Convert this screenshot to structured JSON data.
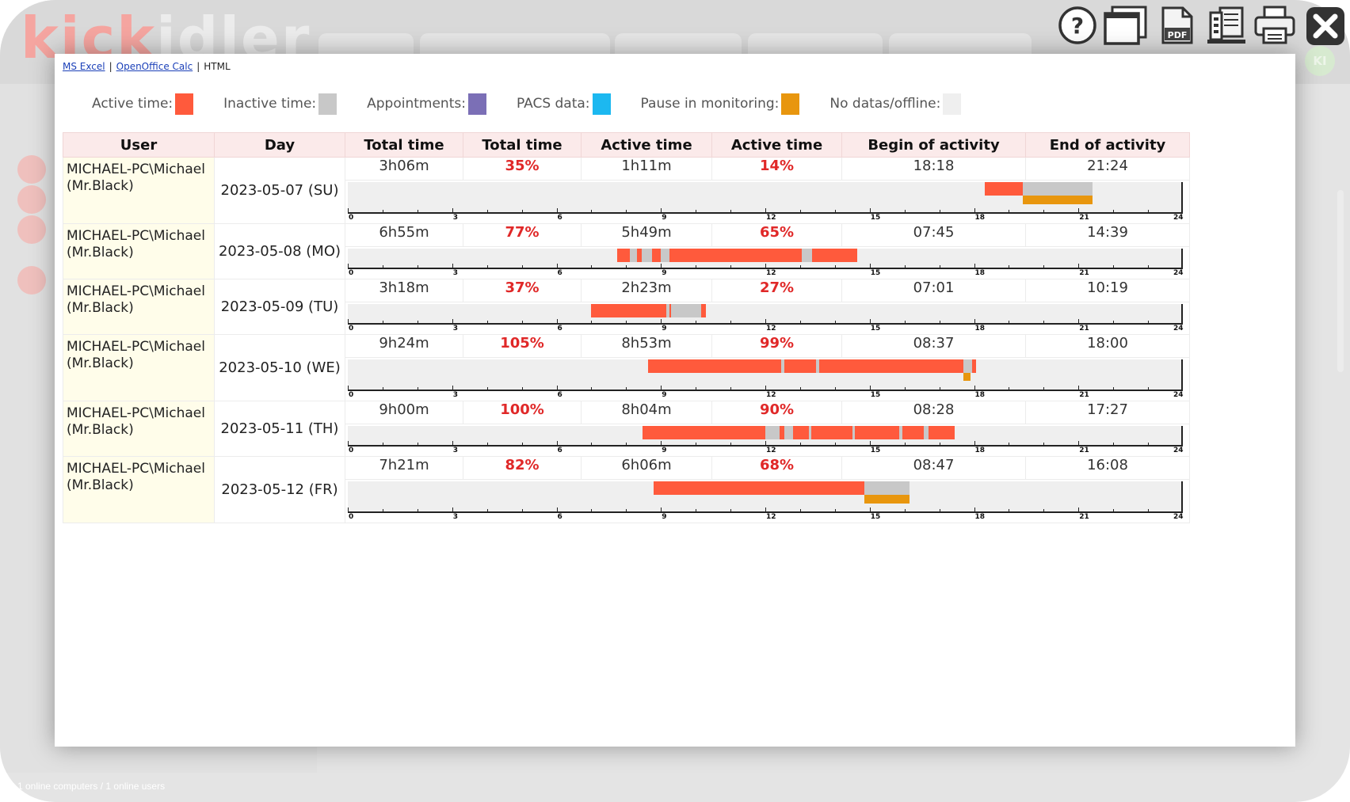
{
  "app": {
    "logo_kick": "kick",
    "logo_idler": "idler",
    "status_text": "1 online computers / 1 online users",
    "avatar_initials": "KI"
  },
  "toolbar": {
    "icons": [
      "help-icon",
      "window-icon",
      "pdf-icon",
      "archive-icon",
      "print-icon",
      "close-icon"
    ],
    "pdf_text": "PDF"
  },
  "export": {
    "excel": "MS Excel",
    "calc": "OpenOffice Calc",
    "html": "HTML",
    "separator": "|"
  },
  "legend": [
    {
      "label": "Active time:",
      "color": "#ff5a3c"
    },
    {
      "label": "Inactive time:",
      "color": "#c8c8c8"
    },
    {
      "label": "Appointments:",
      "color": "#7b6fb6"
    },
    {
      "label": "PACS data:",
      "color": "#1cb8f0"
    },
    {
      "label": "Pause in monitoring:",
      "color": "#e8960e"
    },
    {
      "label": "No datas/offline:",
      "color": "#efefef"
    }
  ],
  "colors": {
    "active": "#ff5a3c",
    "inactive": "#c8c8c8",
    "pause": "#e8960e",
    "offline": "#efefef",
    "percent": "#e02828"
  },
  "table": {
    "headers": [
      "User",
      "Day",
      "Total time",
      "Total time",
      "Active time",
      "Active time",
      "Begin of activity",
      "End of activity"
    ],
    "axis_ticks": [
      "0",
      "3",
      "6",
      "9",
      "12",
      "15",
      "18",
      "21",
      "24"
    ],
    "rows": [
      {
        "user_line1": "MICHAEL-PC\\Michael",
        "user_line2": "(Mr.Black)",
        "day": "2023-05-07 (SU)",
        "total_time": "3h06m",
        "total_pct": "35%",
        "active_time": "1h11m",
        "active_pct": "14%",
        "begin": "18:18",
        "end": "21:24",
        "segments": [
          {
            "type": "active",
            "start": 18.3,
            "end": 19.4
          },
          {
            "type": "inactive",
            "start": 19.4,
            "end": 21.4
          }
        ],
        "pauses": [
          {
            "start": 19.4,
            "end": 21.4
          }
        ]
      },
      {
        "user_line1": "MICHAEL-PC\\Michael",
        "user_line2": "(Mr.Black)",
        "day": "2023-05-08 (MO)",
        "total_time": "6h55m",
        "total_pct": "77%",
        "active_time": "5h49m",
        "active_pct": "65%",
        "begin": "07:45",
        "end": "14:39",
        "segments": [
          {
            "type": "active",
            "start": 7.75,
            "end": 8.1
          },
          {
            "type": "inactive",
            "start": 8.1,
            "end": 8.3
          },
          {
            "type": "active",
            "start": 8.3,
            "end": 8.45
          },
          {
            "type": "inactive",
            "start": 8.45,
            "end": 8.75
          },
          {
            "type": "active",
            "start": 8.75,
            "end": 9.0
          },
          {
            "type": "inactive",
            "start": 9.0,
            "end": 9.25
          },
          {
            "type": "active",
            "start": 9.25,
            "end": 13.05
          },
          {
            "type": "inactive",
            "start": 13.05,
            "end": 13.35
          },
          {
            "type": "active",
            "start": 13.35,
            "end": 14.65
          }
        ],
        "pauses": []
      },
      {
        "user_line1": "MICHAEL-PC\\Michael",
        "user_line2": "(Mr.Black)",
        "day": "2023-05-09 (TU)",
        "total_time": "3h18m",
        "total_pct": "37%",
        "active_time": "2h23m",
        "active_pct": "27%",
        "begin": "07:01",
        "end": "10:19",
        "segments": [
          {
            "type": "active",
            "start": 7.0,
            "end": 9.15
          },
          {
            "type": "inactive",
            "start": 9.15,
            "end": 9.25
          },
          {
            "type": "active",
            "start": 9.25,
            "end": 9.3
          },
          {
            "type": "inactive",
            "start": 9.3,
            "end": 10.15
          },
          {
            "type": "active",
            "start": 10.15,
            "end": 10.3
          }
        ],
        "pauses": []
      },
      {
        "user_line1": "MICHAEL-PC\\Michael",
        "user_line2": "(Mr.Black)",
        "day": "2023-05-10 (WE)",
        "total_time": "9h24m",
        "total_pct": "105%",
        "active_time": "8h53m",
        "active_pct": "99%",
        "begin": "08:37",
        "end": "18:00",
        "segments": [
          {
            "type": "active",
            "start": 8.62,
            "end": 12.45
          },
          {
            "type": "inactive",
            "start": 12.45,
            "end": 12.55
          },
          {
            "type": "active",
            "start": 12.55,
            "end": 13.45
          },
          {
            "type": "inactive",
            "start": 13.45,
            "end": 13.55
          },
          {
            "type": "active",
            "start": 13.55,
            "end": 17.7
          },
          {
            "type": "inactive",
            "start": 17.7,
            "end": 17.95
          },
          {
            "type": "active",
            "start": 17.95,
            "end": 18.05
          }
        ],
        "pauses": [
          {
            "start": 17.7,
            "end": 17.9
          }
        ]
      },
      {
        "user_line1": "MICHAEL-PC\\Michael",
        "user_line2": "(Mr.Black)",
        "day": "2023-05-11 (TH)",
        "total_time": "9h00m",
        "total_pct": "100%",
        "active_time": "8h04m",
        "active_pct": "90%",
        "begin": "08:28",
        "end": "17:27",
        "segments": [
          {
            "type": "active",
            "start": 8.47,
            "end": 12.0
          },
          {
            "type": "inactive",
            "start": 12.0,
            "end": 12.4
          },
          {
            "type": "active",
            "start": 12.4,
            "end": 12.55
          },
          {
            "type": "inactive",
            "start": 12.55,
            "end": 12.8
          },
          {
            "type": "active",
            "start": 12.8,
            "end": 13.25
          },
          {
            "type": "inactive",
            "start": 13.25,
            "end": 13.32
          },
          {
            "type": "active",
            "start": 13.32,
            "end": 14.5
          },
          {
            "type": "inactive",
            "start": 14.5,
            "end": 14.58
          },
          {
            "type": "active",
            "start": 14.58,
            "end": 15.85
          },
          {
            "type": "inactive",
            "start": 15.85,
            "end": 15.95
          },
          {
            "type": "active",
            "start": 15.95,
            "end": 16.55
          },
          {
            "type": "inactive",
            "start": 16.55,
            "end": 16.7
          },
          {
            "type": "active",
            "start": 16.7,
            "end": 17.45
          }
        ],
        "pauses": []
      },
      {
        "user_line1": "MICHAEL-PC\\Michael",
        "user_line2": "(Mr.Black)",
        "day": "2023-05-12 (FR)",
        "total_time": "7h21m",
        "total_pct": "82%",
        "active_time": "6h06m",
        "active_pct": "68%",
        "begin": "08:47",
        "end": "16:08",
        "segments": [
          {
            "type": "active",
            "start": 8.78,
            "end": 14.85
          },
          {
            "type": "inactive",
            "start": 14.85,
            "end": 16.15
          }
        ],
        "pauses": [
          {
            "start": 14.85,
            "end": 16.15
          }
        ]
      }
    ]
  }
}
